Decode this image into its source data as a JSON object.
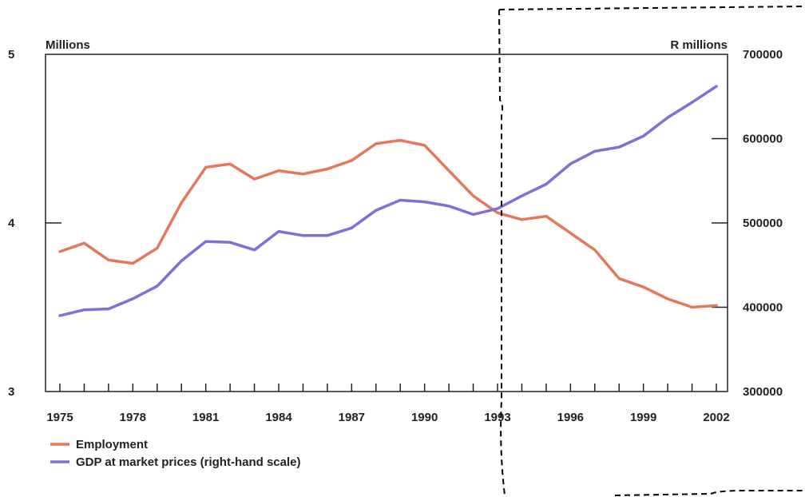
{
  "chart_data": {
    "type": "line",
    "left_axis_unit": "Millions",
    "right_axis_unit": "R millions",
    "left_ylim": [
      3,
      5
    ],
    "right_ylim": [
      300000,
      700000
    ],
    "left_ticks": [
      "3",
      "4",
      "5"
    ],
    "right_ticks": [
      "300000",
      "400000",
      "500000",
      "600000",
      "700000"
    ],
    "xlim": [
      1975,
      2002
    ],
    "x_tick_labels": [
      "1975",
      "1978",
      "1981",
      "1984",
      "1987",
      "1990",
      "1993",
      "1996",
      "1999",
      "2002"
    ],
    "grid": false,
    "legend_position": "bottom-left",
    "x": [
      1975,
      1976,
      1977,
      1978,
      1979,
      1980,
      1981,
      1982,
      1983,
      1984,
      1985,
      1986,
      1987,
      1988,
      1989,
      1990,
      1991,
      1992,
      1993,
      1994,
      1995,
      1996,
      1997,
      1998,
      1999,
      2000,
      2001,
      2002
    ],
    "series": [
      {
        "name": "Employment",
        "axis": "left",
        "color": "#e8775a",
        "values": [
          3.83,
          3.88,
          3.78,
          3.76,
          3.85,
          4.12,
          4.33,
          4.35,
          4.26,
          4.31,
          4.29,
          4.32,
          4.37,
          4.47,
          4.49,
          4.46,
          4.31,
          4.16,
          4.06,
          4.02,
          4.04,
          3.94,
          3.84,
          3.67,
          3.62,
          3.55,
          3.5,
          3.51
        ]
      },
      {
        "name": "GDP at market prices (right-hand scale)",
        "axis": "right",
        "color": "#7f6fd8",
        "values": [
          390000,
          397000,
          398000,
          410000,
          425000,
          455000,
          478000,
          477000,
          468000,
          490000,
          485000,
          485000,
          494000,
          515000,
          527000,
          525000,
          520000,
          510000,
          517000,
          532000,
          546000,
          570000,
          585000,
          590000,
          603000,
          625000,
          643000,
          662000
        ]
      }
    ]
  }
}
